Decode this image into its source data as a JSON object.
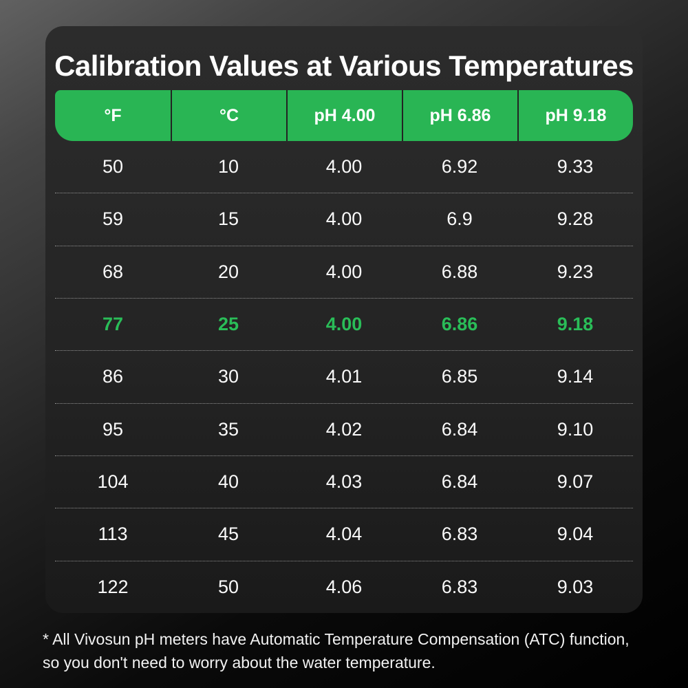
{
  "title": "Calibration Values at Various Temperatures",
  "chart_data": {
    "type": "table",
    "title": "Calibration Values at Various Temperatures",
    "columns": [
      "°F",
      "°C",
      "pH 4.00",
      "pH 6.86",
      "pH 9.18"
    ],
    "rows": [
      {
        "values": [
          "50",
          "10",
          "4.00",
          "6.92",
          "9.33"
        ],
        "highlight": false
      },
      {
        "values": [
          "59",
          "15",
          "4.00",
          "6.9",
          "9.28"
        ],
        "highlight": false
      },
      {
        "values": [
          "68",
          "20",
          "4.00",
          "6.88",
          "9.23"
        ],
        "highlight": false
      },
      {
        "values": [
          "77",
          "25",
          "4.00",
          "6.86",
          "9.18"
        ],
        "highlight": true
      },
      {
        "values": [
          "86",
          "30",
          "4.01",
          "6.85",
          "9.14"
        ],
        "highlight": false
      },
      {
        "values": [
          "95",
          "35",
          "4.02",
          "6.84",
          "9.10"
        ],
        "highlight": false
      },
      {
        "values": [
          "104",
          "40",
          "4.03",
          "6.84",
          "9.07"
        ],
        "highlight": false
      },
      {
        "values": [
          "113",
          "45",
          "4.04",
          "6.83",
          "9.04"
        ],
        "highlight": false
      },
      {
        "values": [
          "122",
          "50",
          "4.06",
          "6.83",
          "9.03"
        ],
        "highlight": false
      }
    ],
    "highlighted_row_index": 3,
    "legend_position": "none",
    "grid": "dotted-row-separators"
  },
  "footnote": {
    "line1": "* All Vivosun pH meters have Automatic Temperature Compensation (ATC) function,",
    "line2": "so you don't need to worry about the water temperature."
  },
  "colors": {
    "accent_green": "#29b554",
    "highlight_text_green": "#2abd58",
    "card_background": "#242424",
    "page_background_top": "#616161",
    "page_background_bottom": "#000000",
    "body_text": "#fafafa"
  }
}
